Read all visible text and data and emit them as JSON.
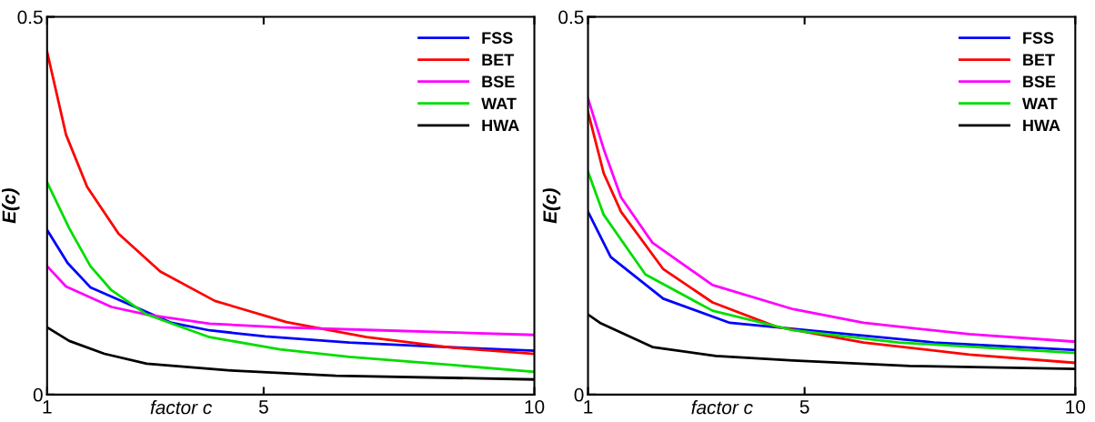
{
  "chart_data": [
    {
      "type": "line",
      "xlabel": "factor c",
      "ylabel": "E(c)",
      "xlim": [
        1,
        10
      ],
      "ylim": [
        0,
        0.5
      ],
      "xticks": [
        1,
        5,
        10
      ],
      "yticks": [
        0,
        0.5
      ],
      "grid": false,
      "legend": "top right",
      "marker": "none",
      "line_style": "solid",
      "series": [
        {
          "name": "FSS",
          "color": "#0000ff",
          "x": [
            1,
            1.38,
            1.8,
            3.3,
            4,
            5.03,
            6.58,
            8,
            10
          ],
          "values": [
            0.218,
            0.174,
            0.142,
            0.095,
            0.085,
            0.077,
            0.069,
            0.064,
            0.058
          ]
        },
        {
          "name": "BET",
          "color": "#ff0000",
          "x": [
            1,
            1.35,
            1.74,
            2.32,
            3.09,
            4.1,
            5.42,
            6.9,
            8.5,
            10
          ],
          "values": [
            0.454,
            0.344,
            0.275,
            0.213,
            0.163,
            0.124,
            0.096,
            0.076,
            0.062,
            0.054
          ]
        },
        {
          "name": "BSE",
          "color": "#ff00ff",
          "x": [
            1,
            1.35,
            2.19,
            2.84,
            4,
            5.3,
            7.2,
            10
          ],
          "values": [
            0.17,
            0.143,
            0.116,
            0.106,
            0.094,
            0.089,
            0.085,
            0.079
          ]
        },
        {
          "name": "WAT",
          "color": "#00dd00",
          "x": [
            1,
            1.41,
            1.8,
            2.19,
            2.84,
            4,
            5.3,
            6.58,
            8.5,
            10
          ],
          "values": [
            0.281,
            0.22,
            0.17,
            0.138,
            0.106,
            0.076,
            0.06,
            0.05,
            0.039,
            0.03
          ]
        },
        {
          "name": "HWA",
          "color": "#000000",
          "x": [
            1,
            1.41,
            2.06,
            2.84,
            4.39,
            6.33,
            10
          ],
          "values": [
            0.089,
            0.071,
            0.054,
            0.041,
            0.032,
            0.025,
            0.02
          ]
        }
      ]
    },
    {
      "type": "line",
      "xlabel": "factor c",
      "ylabel": "E(c)",
      "xlim": [
        1,
        10
      ],
      "ylim": [
        0,
        0.5
      ],
      "xticks": [
        1,
        5,
        10
      ],
      "yticks": [
        0,
        0.5
      ],
      "grid": false,
      "legend": "top right",
      "marker": "none",
      "line_style": "solid",
      "series": [
        {
          "name": "FSS",
          "color": "#0000ff",
          "x": [
            1,
            1.42,
            2.39,
            3.62,
            7.39,
            10
          ],
          "values": [
            0.242,
            0.182,
            0.127,
            0.095,
            0.069,
            0.059
          ]
        },
        {
          "name": "BET",
          "color": "#ff0000",
          "x": [
            1,
            1.29,
            1.61,
            2.39,
            3.3,
            4.47,
            6.09,
            8.04,
            10
          ],
          "values": [
            0.374,
            0.293,
            0.242,
            0.166,
            0.122,
            0.09,
            0.069,
            0.053,
            0.042
          ]
        },
        {
          "name": "BSE",
          "color": "#ff00ff",
          "x": [
            1,
            1.29,
            1.61,
            2.19,
            3.3,
            4.79,
            6.09,
            8.04,
            10
          ],
          "values": [
            0.392,
            0.325,
            0.261,
            0.201,
            0.145,
            0.113,
            0.095,
            0.08,
            0.07
          ]
        },
        {
          "name": "WAT",
          "color": "#00dd00",
          "x": [
            1,
            1.29,
            2.06,
            3.3,
            4.79,
            6.74,
            10
          ],
          "values": [
            0.295,
            0.238,
            0.159,
            0.111,
            0.085,
            0.069,
            0.055
          ]
        },
        {
          "name": "HWA",
          "color": "#000000",
          "x": [
            1,
            1.22,
            2.19,
            3.36,
            4.79,
            6.94,
            10
          ],
          "values": [
            0.106,
            0.095,
            0.063,
            0.051,
            0.045,
            0.038,
            0.034
          ]
        }
      ]
    }
  ]
}
